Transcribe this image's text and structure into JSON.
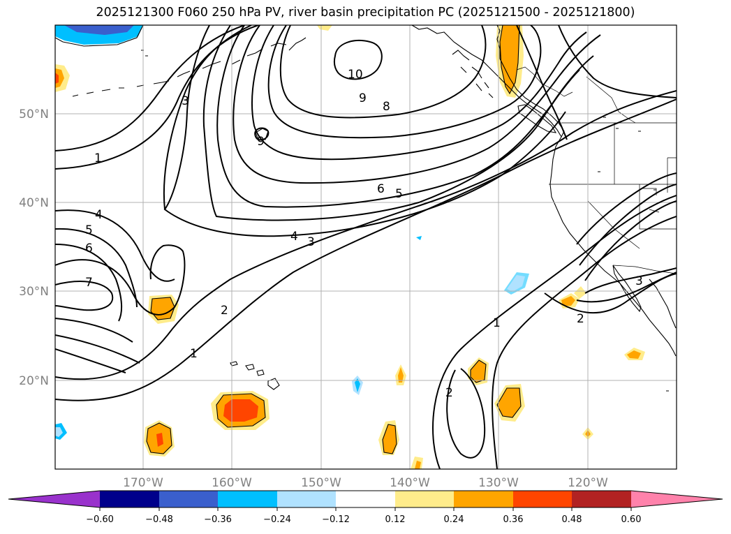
{
  "title": "2025121300 F060 250 hPa PV, river basin precipitation PC (2025121500 - 2025121800)",
  "lat_labels": [
    "50°N",
    "40°N",
    "30°N",
    "20°N"
  ],
  "lon_labels": [
    "170°W",
    "160°W",
    "150°W",
    "140°W",
    "130°W",
    "120°W"
  ],
  "contour_labels": [
    "1",
    "2",
    "3",
    "4",
    "5",
    "6",
    "7",
    "8",
    "9",
    "10"
  ],
  "colorbar": {
    "tick_labels": [
      "−0.60",
      "−0.48",
      "−0.36",
      "−0.24",
      "−0.12",
      "0.12",
      "0.24",
      "0.36",
      "0.48",
      "0.60"
    ],
    "colors": [
      "#9932cc",
      "#00008b",
      "#3a5fcd",
      "#00bfff",
      "#b0e2ff",
      "#ffffff",
      "#ffec8b",
      "#ffa500",
      "#ff4500",
      "#b22222",
      "#ff82ab"
    ]
  }
}
